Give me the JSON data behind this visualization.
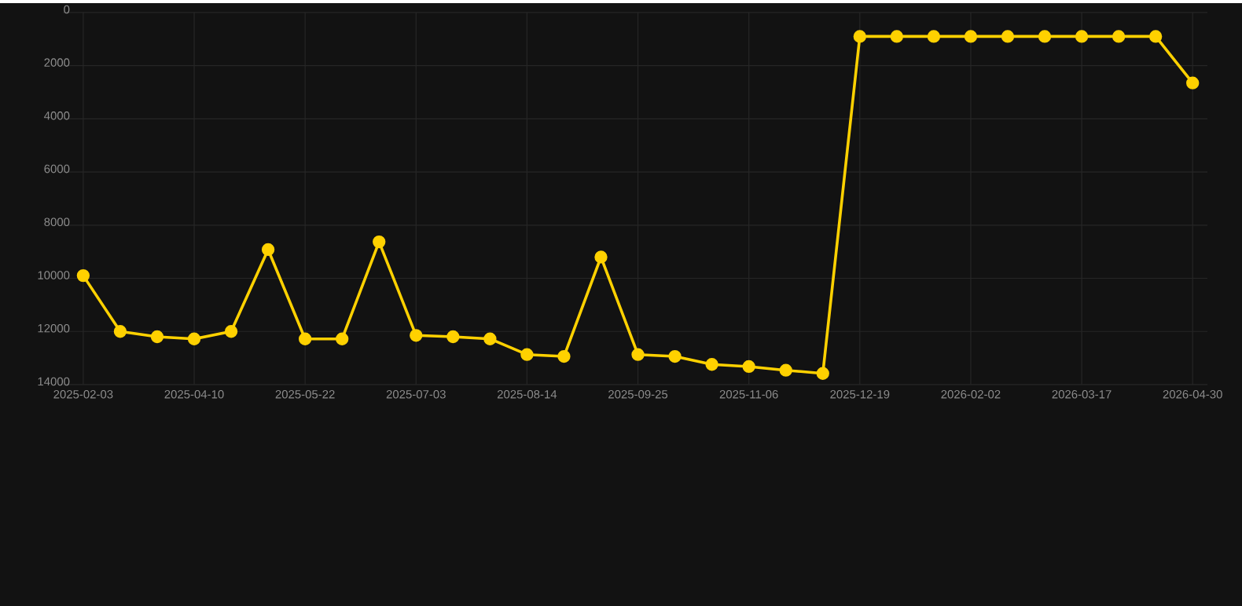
{
  "chart_data": {
    "type": "line",
    "categories": [
      "2025-02-03",
      null,
      null,
      "2025-04-10",
      null,
      null,
      "2025-05-22",
      null,
      null,
      "2025-07-03",
      null,
      null,
      "2025-08-14",
      null,
      null,
      "2025-09-25",
      null,
      null,
      "2025-11-06",
      null,
      null,
      "2025-12-19",
      null,
      null,
      "2026-02-02",
      null,
      null,
      "2026-03-17",
      null,
      null,
      "2026-04-30"
    ],
    "series": [
      {
        "color": "#ffd100",
        "values": [
          9900,
          12000,
          12200,
          12280,
          12000,
          8920,
          12280,
          12280,
          8630,
          12150,
          12200,
          12280,
          12870,
          12940,
          9200,
          12870,
          12940,
          13240,
          13320,
          13460,
          13580,
          900,
          900,
          900,
          900,
          900,
          900,
          900,
          900,
          900,
          2650
        ]
      }
    ],
    "ylim": [
      14000,
      0
    ],
    "yticks": [
      0,
      2000,
      4000,
      6000,
      8000,
      10000,
      12000,
      14000
    ],
    "grid": true,
    "marker": "circle",
    "line_style": "solid"
  }
}
